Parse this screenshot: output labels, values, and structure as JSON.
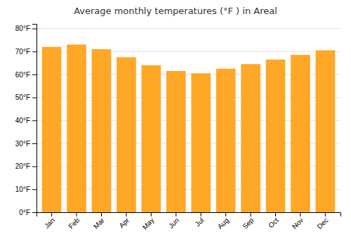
{
  "chart_data": {
    "type": "bar",
    "title": "Average monthly temperatures (°F ) in Areal",
    "categories": [
      "Jan",
      "Feb",
      "Mar",
      "Apr",
      "May",
      "Jun",
      "Jul",
      "Aug",
      "Sep",
      "Oct",
      "Nov",
      "Dec"
    ],
    "values": [
      72,
      73,
      71,
      67.5,
      64,
      61.5,
      60.5,
      62.5,
      64.5,
      66.5,
      68.5,
      70.5
    ],
    "color": "#FFA726",
    "ylim": [
      0,
      82
    ],
    "yticks": [
      {
        "value": 0,
        "label": "0°F"
      },
      {
        "value": 10,
        "label": "10°F"
      },
      {
        "value": 20,
        "label": "20°F"
      },
      {
        "value": 30,
        "label": "30°F"
      },
      {
        "value": 40,
        "label": "40°F"
      },
      {
        "value": 50,
        "label": "50°F"
      },
      {
        "value": 60,
        "label": "60°F"
      },
      {
        "value": 70,
        "label": "70°F"
      },
      {
        "value": 80,
        "label": "80°F"
      }
    ],
    "grid": true
  }
}
